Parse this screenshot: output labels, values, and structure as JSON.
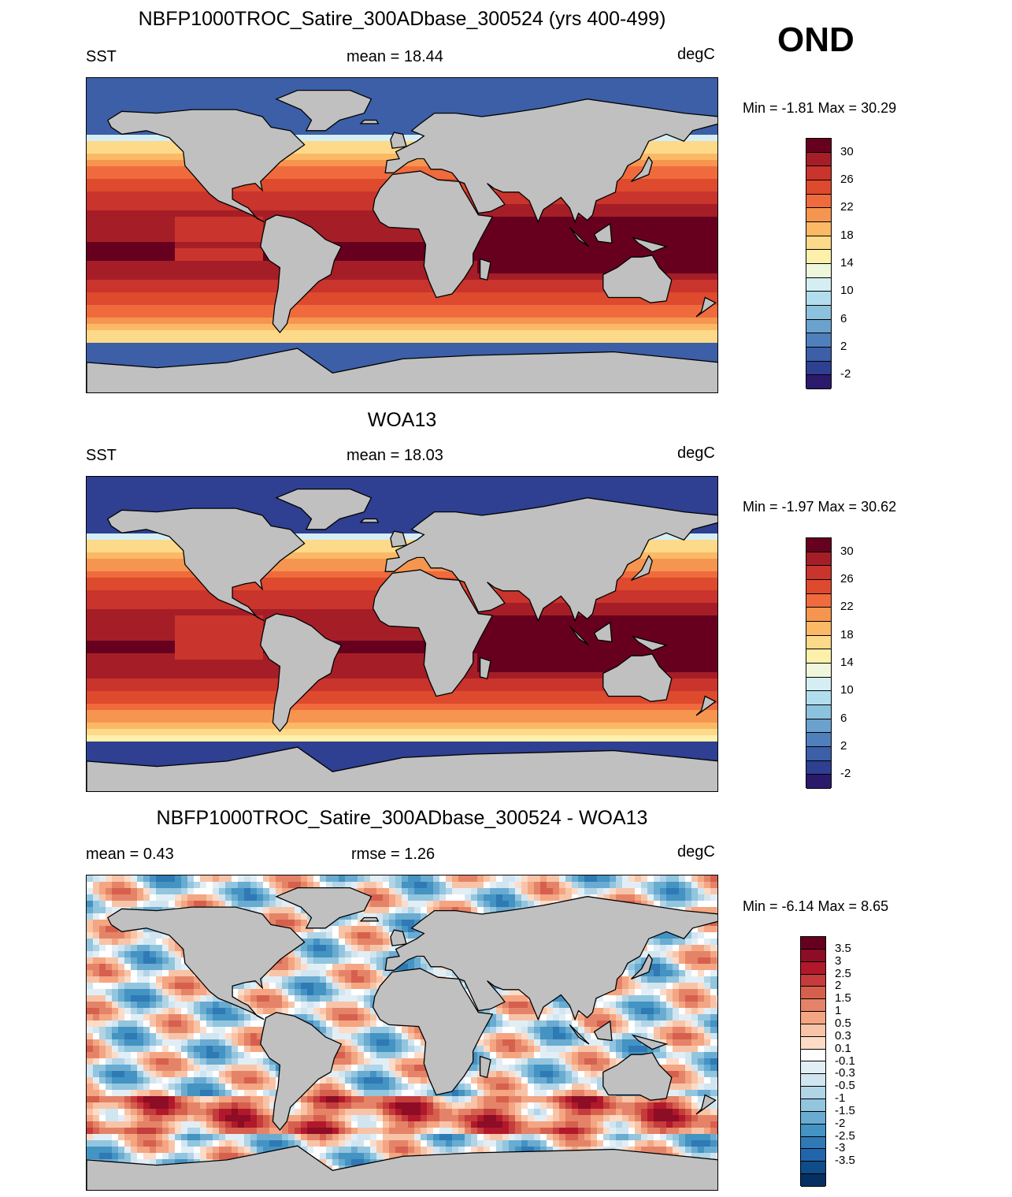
{
  "season": "OND",
  "panels": [
    {
      "title": "NBFP1000TROC_Satire_300ADbase_300524 (yrs 400-499)",
      "left_label": "SST",
      "center_label": "mean =  18.44",
      "right_label": "degC",
      "minmax": "Min =  -1.81 Max =  30.29",
      "field": "sst_model",
      "colorbar": {
        "labels": [
          "30",
          "26",
          "22",
          "18",
          "14",
          "10",
          "6",
          "2",
          "-2"
        ],
        "colors": [
          "#67001f",
          "#a51e27",
          "#c9342c",
          "#de4a2e",
          "#ef6b3d",
          "#f6954f",
          "#fbb966",
          "#fdd98a",
          "#fdf0aa",
          "#eef7dc",
          "#d5eef3",
          "#b2ddec",
          "#8cc2de",
          "#6aa2cd",
          "#4f80bb",
          "#3c5fa7",
          "#2f3f91",
          "#2b1a6c"
        ]
      }
    },
    {
      "title": "WOA13",
      "left_label": "SST",
      "center_label": "mean =  18.03",
      "right_label": "degC",
      "minmax": "Min =  -1.97 Max =  30.62",
      "field": "sst_obs",
      "colorbar": {
        "labels": [
          "30",
          "26",
          "22",
          "18",
          "14",
          "10",
          "6",
          "2",
          "-2"
        ],
        "colors": [
          "#67001f",
          "#a51e27",
          "#c9342c",
          "#de4a2e",
          "#ef6b3d",
          "#f6954f",
          "#fbb966",
          "#fdd98a",
          "#fdf0aa",
          "#eef7dc",
          "#d5eef3",
          "#b2ddec",
          "#8cc2de",
          "#6aa2cd",
          "#4f80bb",
          "#3c5fa7",
          "#2f3f91",
          "#2b1a6c"
        ]
      }
    },
    {
      "title": "NBFP1000TROC_Satire_300ADbase_300524 - WOA13",
      "left_label": "mean =   0.43",
      "center_label": "rmse =   1.26",
      "right_label": "degC",
      "minmax": "Min =  -6.14 Max =   8.65",
      "field": "sst_diff",
      "colorbar": {
        "labels": [
          "3.5",
          "3",
          "2.5",
          "2",
          "1.5",
          "1",
          "0.5",
          "0.3",
          "0.1",
          "-0.1",
          "-0.3",
          "-0.5",
          "-1",
          "-1.5",
          "-2",
          "-2.5",
          "-3",
          "-3.5"
        ],
        "colors": [
          "#67001f",
          "#8c0d25",
          "#b2182b",
          "#c43c3c",
          "#d6604d",
          "#e58368",
          "#f4a582",
          "#f8c4a8",
          "#fddbc7",
          "#ffffff",
          "#e2eef6",
          "#d1e5f0",
          "#b1d4e7",
          "#92c5de",
          "#6aabd1",
          "#4393c3",
          "#2f79b5",
          "#2166ac",
          "#0f4c8a",
          "#053061"
        ]
      }
    }
  ]
}
